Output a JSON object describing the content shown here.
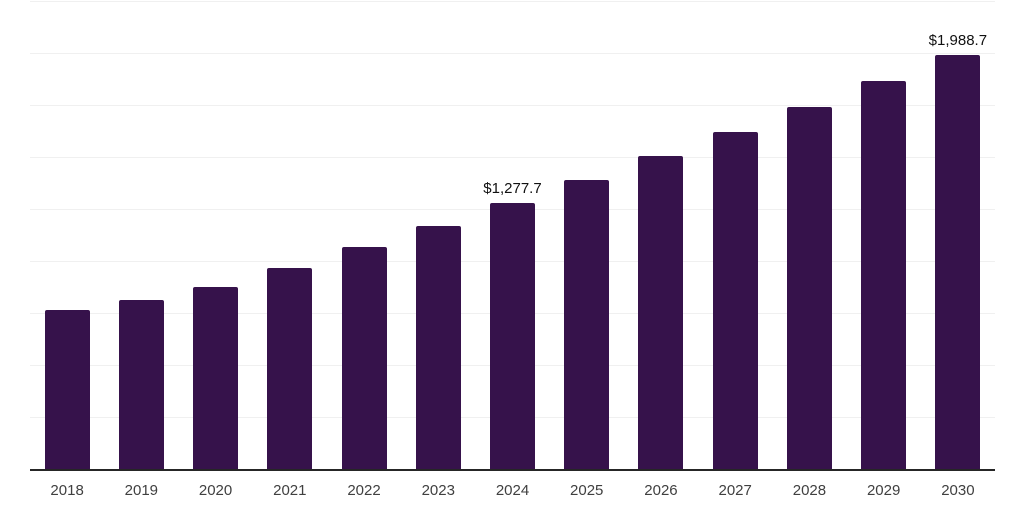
{
  "chart_data": {
    "type": "bar",
    "title": "",
    "xlabel": "",
    "ylabel": "",
    "categories": [
      "2018",
      "2019",
      "2020",
      "2021",
      "2022",
      "2023",
      "2024",
      "2025",
      "2026",
      "2027",
      "2028",
      "2029",
      "2030"
    ],
    "values": [
      764,
      812,
      876,
      968,
      1065,
      1170,
      1277.7,
      1388,
      1503,
      1622,
      1742,
      1865,
      1988.7
    ],
    "value_labels": {
      "2024": "$1,277.7",
      "2030": "$1,988.7"
    },
    "ylim": [
      0,
      2250
    ],
    "grid_step": 250,
    "grid": true,
    "legend": false,
    "y_tick_labels_visible": false,
    "colors": {
      "bar": "#36124b",
      "gridline": "#f0f0f0",
      "axis_line": "#262626",
      "tick_label": "#404040",
      "data_label": "#111111",
      "background": "#ffffff"
    }
  }
}
